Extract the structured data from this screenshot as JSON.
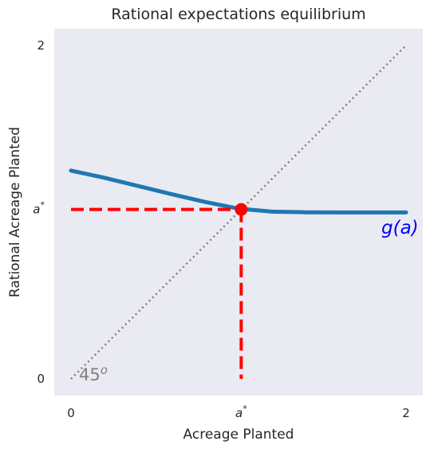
{
  "chart_data": {
    "type": "line",
    "title": "Rational expectations equilibrium",
    "xlabel": "Acreage Planted",
    "ylabel": "Rational Acreage Planted",
    "xlim": [
      -0.1,
      2.1
    ],
    "ylim": [
      -0.1,
      2.1
    ],
    "x_ticks": [
      {
        "value": 0,
        "label": "0"
      },
      {
        "value": 1.016,
        "label": "a*"
      },
      {
        "value": 2,
        "label": "2"
      }
    ],
    "y_ticks": [
      {
        "value": 0,
        "label": "0"
      },
      {
        "value": 1.016,
        "label": "a*"
      },
      {
        "value": 2,
        "label": "2"
      }
    ],
    "grid": false,
    "series": [
      {
        "name": "g(a)",
        "color": "#1f77b4",
        "x": [
          0,
          0.2,
          0.4,
          0.6,
          0.8,
          1.0,
          1.2,
          1.4,
          1.6,
          1.8,
          2.0
        ],
        "y": [
          1.249,
          1.206,
          1.157,
          1.108,
          1.061,
          1.021,
          1.003,
          0.999,
          0.998,
          0.998,
          0.998
        ]
      }
    ],
    "reference_line": {
      "type": "45-degree",
      "color": "#808080",
      "style": "dotted"
    },
    "equilibrium": {
      "x": 1.016,
      "y": 1.016,
      "color": "#ff0000",
      "guides": "dashed"
    },
    "annotations": [
      {
        "text": "45",
        "superscript": "o",
        "color": "#808080"
      },
      {
        "text": "g(a)",
        "color": "#0000ff"
      }
    ],
    "background": "#eaeaf2"
  }
}
